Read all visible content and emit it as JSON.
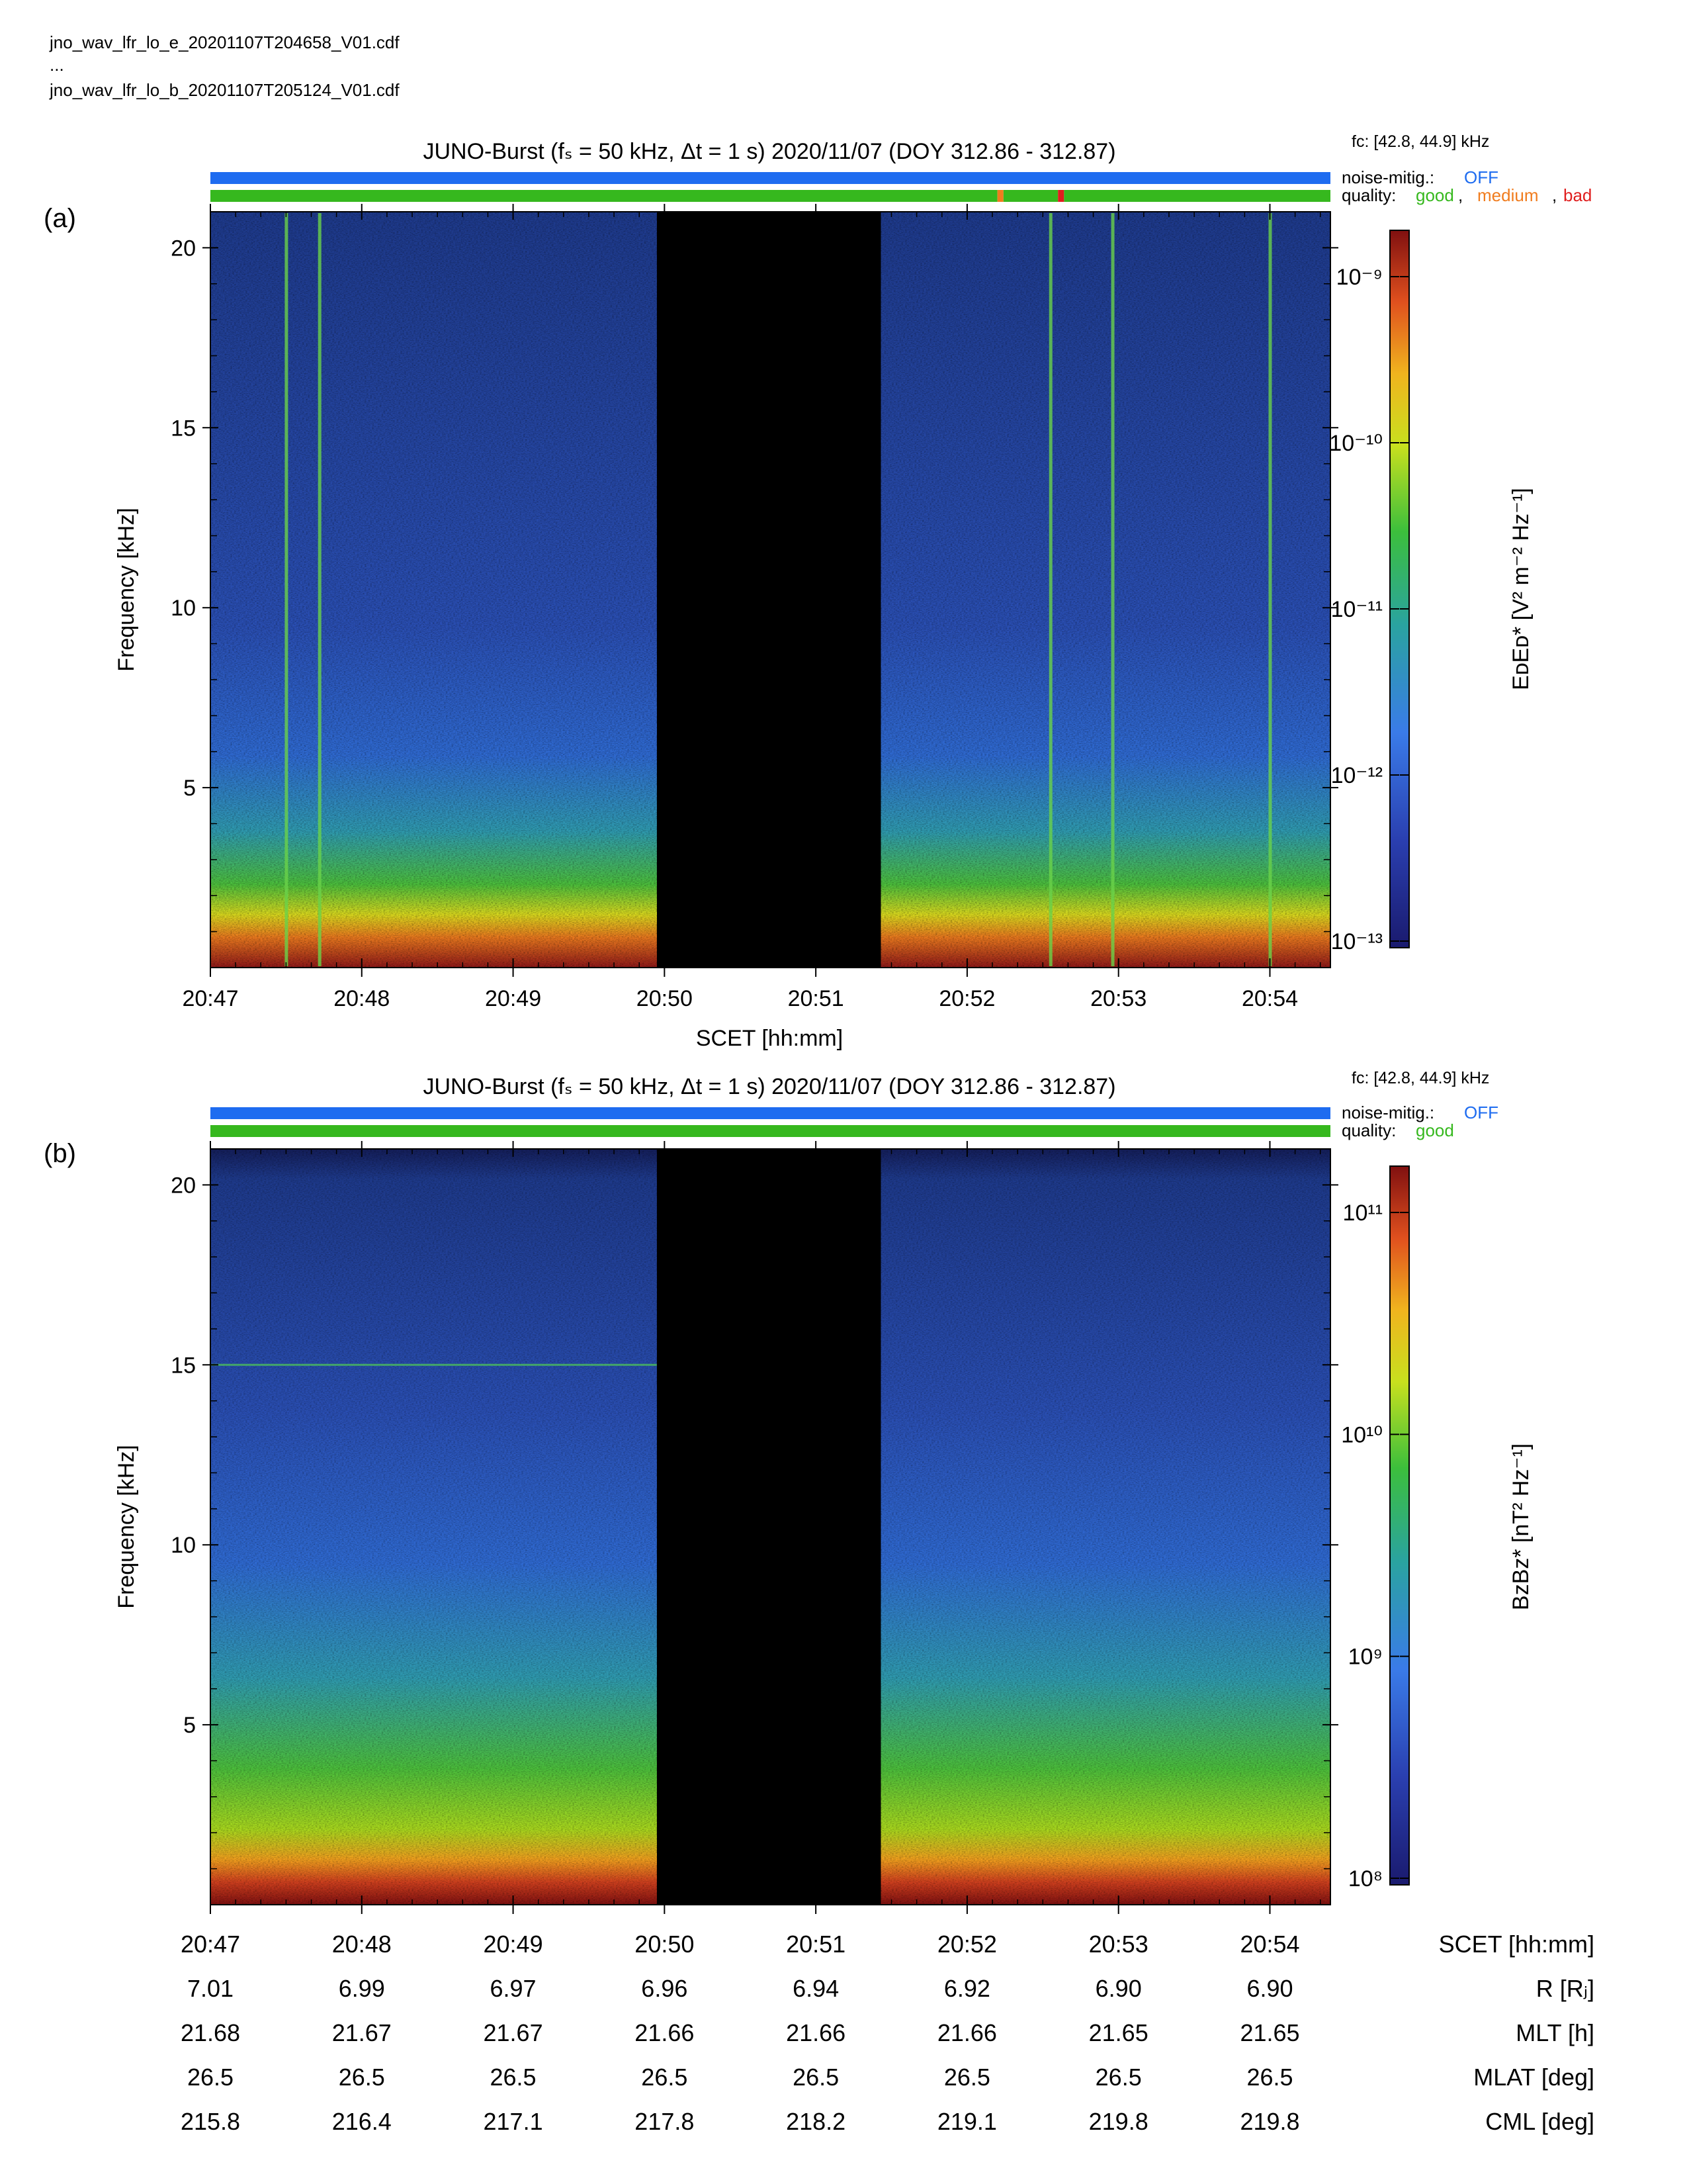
{
  "files": {
    "line1": "jno_wav_lfr_lo_e_20201107T204658_V01.cdf",
    "line2": "...",
    "line3": "jno_wav_lfr_lo_b_20201107T205124_V01.cdf"
  },
  "colors": {
    "noise_bar": "#1e6cf0",
    "quality_good": "#36b81e",
    "quality_medium": "#f07c1e",
    "quality_bad": "#e01e1e",
    "gap": "#000000"
  },
  "panel_a": {
    "label": "(a)",
    "title": "JUNO-Burst (fₛ = 50 kHz, Δt = 1 s)  2020/11/07 (DOY 312.86 - 312.87)",
    "fc": "fᴄ: [42.8, 44.9] kHz",
    "noise_label": "noise-mitig.:",
    "noise_value": "OFF",
    "quality_label": "quality:",
    "quality_good": "good",
    "quality_sep1": ",",
    "quality_medium": "medium",
    "quality_sep2": ",",
    "quality_bad": "bad",
    "ylabel": "Frequency [kHz]",
    "xlabel": "SCET [hh:mm]",
    "cbar_label": "EᴅEᴅ* [V² m⁻² Hz⁻¹]",
    "cbar_ticks": [
      "10⁻⁹",
      "10⁻¹⁰",
      "10⁻¹¹",
      "10⁻¹²",
      "10⁻¹³"
    ]
  },
  "panel_b": {
    "label": "(b)",
    "title": "JUNO-Burst (fₛ = 50 kHz, Δt = 1 s)  2020/11/07 (DOY 312.86 - 312.87)",
    "fc": "fᴄ: [42.8, 44.9] kHz",
    "noise_label": "noise-mitig.:",
    "noise_value": "OFF",
    "quality_label": "quality:",
    "quality_good": "good",
    "ylabel": "Frequency [kHz]",
    "cbar_label": "BᴢBᴢ* [nT² Hz⁻¹]",
    "cbar_ticks": [
      "10¹¹",
      "10¹⁰",
      "10⁹",
      "10⁸"
    ]
  },
  "chart_data": [
    {
      "type": "heatmap",
      "panel": "(a)",
      "title": "JUNO-Burst (fₛ = 50 kHz, Δt = 1 s)  2020/11/07 (DOY 312.86 - 312.87)",
      "xlabel": "SCET [hh:mm]",
      "ylabel": "Frequency [kHz]",
      "x_ticks": [
        "20:47",
        "20:48",
        "20:49",
        "20:50",
        "20:51",
        "20:52",
        "20:53",
        "20:54"
      ],
      "y_ticks": [
        5,
        10,
        15,
        20
      ],
      "ylim": [
        0,
        21
      ],
      "xlim_minutes": [
        0,
        7.4
      ],
      "data_gap_minutes": [
        2.95,
        4.43
      ],
      "vertical_lines_minutes": [
        0.5,
        0.72,
        5.55,
        5.96,
        7.0
      ],
      "colorbar": {
        "label": "EᴅEᴅ* [V² m⁻² Hz⁻¹]",
        "scale": "log",
        "range": [
          8e-14,
          7e-09
        ]
      },
      "quality_flags": [
        {
          "from": 0.0,
          "to": 5.2,
          "flag": "good"
        },
        {
          "from": 5.2,
          "to": 5.24,
          "flag": "medium"
        },
        {
          "from": 5.24,
          "to": 5.6,
          "flag": "good"
        },
        {
          "from": 5.6,
          "to": 5.64,
          "flag": "bad"
        },
        {
          "from": 5.64,
          "to": 7.4,
          "flag": "good"
        }
      ]
    },
    {
      "type": "heatmap",
      "panel": "(b)",
      "title": "JUNO-Burst (fₛ = 50 kHz, Δt = 1 s)  2020/11/07 (DOY 312.86 - 312.87)",
      "ylabel": "Frequency [kHz]",
      "x_ticks": [
        "20:47",
        "20:48",
        "20:49",
        "20:50",
        "20:51",
        "20:52",
        "20:53",
        "20:54"
      ],
      "y_ticks": [
        5,
        10,
        15,
        20
      ],
      "ylim": [
        0,
        21
      ],
      "xlim_minutes": [
        0,
        7.4
      ],
      "data_gap_minutes": [
        2.95,
        4.43
      ],
      "horizontal_line_khz": 15,
      "colorbar": {
        "label": "BᴢBᴢ* [nT² Hz⁻¹]",
        "scale": "log",
        "range": [
          70000000.0,
          200000000000.0
        ]
      },
      "quality_flags": [
        {
          "from": 0.0,
          "to": 7.4,
          "flag": "good"
        }
      ]
    }
  ],
  "ephemeris": {
    "rows": [
      {
        "label": "SCET [hh:mm]",
        "values": [
          "20:47",
          "20:48",
          "20:49",
          "20:50",
          "20:51",
          "20:52",
          "20:53",
          "20:54"
        ]
      },
      {
        "label": "R [Rⱼ]",
        "values": [
          "7.01",
          "6.99",
          "6.97",
          "6.96",
          "6.94",
          "6.92",
          "6.90",
          "6.90"
        ]
      },
      {
        "label": "MLT [h]",
        "values": [
          "21.68",
          "21.67",
          "21.67",
          "21.66",
          "21.66",
          "21.66",
          "21.65",
          "21.65"
        ]
      },
      {
        "label": "MLAT [deg]",
        "values": [
          "26.5",
          "26.5",
          "26.5",
          "26.5",
          "26.5",
          "26.5",
          "26.5",
          "26.5"
        ]
      },
      {
        "label": "CML [deg]",
        "values": [
          "215.8",
          "216.4",
          "217.1",
          "217.8",
          "218.2",
          "219.1",
          "219.8",
          "219.8"
        ]
      }
    ]
  }
}
